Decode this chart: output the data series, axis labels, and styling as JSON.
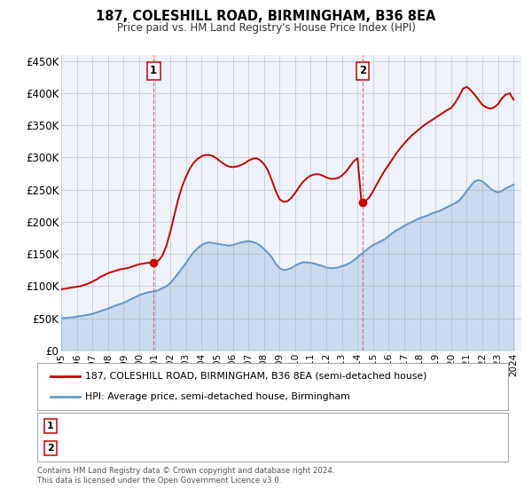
{
  "title": "187, COLESHILL ROAD, BIRMINGHAM, B36 8EA",
  "subtitle": "Price paid vs. HM Land Registry's House Price Index (HPI)",
  "xlim": [
    1995.0,
    2024.5
  ],
  "ylim": [
    0,
    460000
  ],
  "yticks": [
    0,
    50000,
    100000,
    150000,
    200000,
    250000,
    300000,
    350000,
    400000,
    450000
  ],
  "ytick_labels": [
    "£0",
    "£50K",
    "£100K",
    "£150K",
    "£200K",
    "£250K",
    "£300K",
    "£350K",
    "£400K",
    "£450K"
  ],
  "xtick_years": [
    1995,
    1996,
    1997,
    1998,
    1999,
    2000,
    2001,
    2002,
    2003,
    2004,
    2005,
    2006,
    2007,
    2008,
    2009,
    2010,
    2011,
    2012,
    2013,
    2014,
    2015,
    2016,
    2017,
    2018,
    2019,
    2020,
    2021,
    2022,
    2023,
    2024
  ],
  "sale1_x": 2000.92,
  "sale1_y": 136500,
  "sale1_label": "1",
  "sale2_x": 2014.33,
  "sale2_y": 230000,
  "sale2_label": "2",
  "red_line_color": "#cc0000",
  "blue_line_color": "#6699cc",
  "bg_color": "#eef2fb",
  "legend_label_red": "187, COLESHILL ROAD, BIRMINGHAM, B36 8EA (semi-detached house)",
  "legend_label_blue": "HPI: Average price, semi-detached house, Birmingham",
  "footer": "Contains HM Land Registry data © Crown copyright and database right 2024.\nThis data is licensed under the Open Government Licence v3.0.",
  "hpi_data_x": [
    1995.0,
    1995.25,
    1995.5,
    1995.75,
    1996.0,
    1996.25,
    1996.5,
    1996.75,
    1997.0,
    1997.25,
    1997.5,
    1997.75,
    1998.0,
    1998.25,
    1998.5,
    1998.75,
    1999.0,
    1999.25,
    1999.5,
    1999.75,
    2000.0,
    2000.25,
    2000.5,
    2000.75,
    2001.0,
    2001.25,
    2001.5,
    2001.75,
    2002.0,
    2002.25,
    2002.5,
    2002.75,
    2003.0,
    2003.25,
    2003.5,
    2003.75,
    2004.0,
    2004.25,
    2004.5,
    2004.75,
    2005.0,
    2005.25,
    2005.5,
    2005.75,
    2006.0,
    2006.25,
    2006.5,
    2006.75,
    2007.0,
    2007.25,
    2007.5,
    2007.75,
    2008.0,
    2008.25,
    2008.5,
    2008.75,
    2009.0,
    2009.25,
    2009.5,
    2009.75,
    2010.0,
    2010.25,
    2010.5,
    2010.75,
    2011.0,
    2011.25,
    2011.5,
    2011.75,
    2012.0,
    2012.25,
    2012.5,
    2012.75,
    2013.0,
    2013.25,
    2013.5,
    2013.75,
    2014.0,
    2014.25,
    2014.5,
    2014.75,
    2015.0,
    2015.25,
    2015.5,
    2015.75,
    2016.0,
    2016.25,
    2016.5,
    2016.75,
    2017.0,
    2017.25,
    2017.5,
    2017.75,
    2018.0,
    2018.25,
    2018.5,
    2018.75,
    2019.0,
    2019.25,
    2019.5,
    2019.75,
    2020.0,
    2020.25,
    2020.5,
    2020.75,
    2021.0,
    2021.25,
    2021.5,
    2021.75,
    2022.0,
    2022.25,
    2022.5,
    2022.75,
    2023.0,
    2023.25,
    2023.5,
    2023.75,
    2024.0
  ],
  "hpi_data_y": [
    50000,
    50500,
    51000,
    51500,
    52500,
    53500,
    54500,
    55500,
    57000,
    59000,
    61000,
    63000,
    65000,
    67500,
    70000,
    72000,
    74000,
    77000,
    80000,
    83000,
    86000,
    88000,
    90000,
    91000,
    92000,
    94000,
    97000,
    100000,
    105000,
    112000,
    120000,
    128000,
    136000,
    145000,
    153000,
    159000,
    164000,
    167000,
    168000,
    167000,
    166000,
    165000,
    164000,
    163000,
    164000,
    166000,
    168000,
    169000,
    170000,
    169000,
    167000,
    163000,
    158000,
    152000,
    145000,
    135000,
    128000,
    125000,
    126000,
    128000,
    132000,
    135000,
    137000,
    137000,
    136000,
    135000,
    133000,
    131000,
    129000,
    128000,
    128000,
    129000,
    131000,
    133000,
    136000,
    140000,
    145000,
    150000,
    155000,
    160000,
    164000,
    167000,
    170000,
    173000,
    178000,
    183000,
    187000,
    190000,
    194000,
    197000,
    200000,
    203000,
    206000,
    208000,
    210000,
    213000,
    215000,
    217000,
    220000,
    223000,
    226000,
    229000,
    233000,
    240000,
    248000,
    256000,
    263000,
    265000,
    263000,
    258000,
    252000,
    248000,
    246000,
    248000,
    252000,
    255000,
    258000
  ],
  "price_data_x": [
    1995.0,
    1995.25,
    1995.5,
    1995.75,
    1996.0,
    1996.25,
    1996.5,
    1996.75,
    1997.0,
    1997.25,
    1997.5,
    1997.75,
    1998.0,
    1998.25,
    1998.5,
    1998.75,
    1999.0,
    1999.25,
    1999.5,
    1999.75,
    2000.0,
    2000.25,
    2000.5,
    2000.75,
    2001.0,
    2001.25,
    2001.5,
    2001.75,
    2002.0,
    2002.25,
    2002.5,
    2002.75,
    2003.0,
    2003.25,
    2003.5,
    2003.75,
    2004.0,
    2004.25,
    2004.5,
    2004.75,
    2005.0,
    2005.25,
    2005.5,
    2005.75,
    2006.0,
    2006.25,
    2006.5,
    2006.75,
    2007.0,
    2007.25,
    2007.5,
    2007.75,
    2008.0,
    2008.25,
    2008.5,
    2008.75,
    2009.0,
    2009.25,
    2009.5,
    2009.75,
    2010.0,
    2010.25,
    2010.5,
    2010.75,
    2011.0,
    2011.25,
    2011.5,
    2011.75,
    2012.0,
    2012.25,
    2012.5,
    2012.75,
    2013.0,
    2013.25,
    2013.5,
    2013.75,
    2014.0,
    2014.25,
    2014.5,
    2014.75,
    2015.0,
    2015.25,
    2015.5,
    2015.75,
    2016.0,
    2016.25,
    2016.5,
    2016.75,
    2017.0,
    2017.25,
    2017.5,
    2017.75,
    2018.0,
    2018.25,
    2018.5,
    2018.75,
    2019.0,
    2019.25,
    2019.5,
    2019.75,
    2020.0,
    2020.25,
    2020.5,
    2020.75,
    2021.0,
    2021.25,
    2021.5,
    2021.75,
    2022.0,
    2022.25,
    2022.5,
    2022.75,
    2023.0,
    2023.25,
    2023.5,
    2023.75,
    2024.0
  ],
  "price_data_y": [
    95000,
    96000,
    97000,
    98000,
    99000,
    100000,
    102000,
    104000,
    107000,
    110000,
    114000,
    117000,
    120000,
    122000,
    124000,
    126000,
    127000,
    128000,
    130000,
    132000,
    134000,
    135000,
    136000,
    136500,
    137000,
    140000,
    148000,
    163000,
    185000,
    210000,
    235000,
    255000,
    270000,
    283000,
    292000,
    298000,
    302000,
    304000,
    304000,
    302000,
    298000,
    293000,
    289000,
    286000,
    285000,
    286000,
    288000,
    291000,
    295000,
    298000,
    299000,
    296000,
    290000,
    280000,
    265000,
    248000,
    235000,
    231000,
    232000,
    237000,
    245000,
    254000,
    262000,
    268000,
    272000,
    274000,
    274000,
    272000,
    269000,
    267000,
    267000,
    268000,
    272000,
    278000,
    286000,
    294000,
    299000,
    230000,
    232000,
    238000,
    248000,
    259000,
    270000,
    280000,
    289000,
    298000,
    307000,
    315000,
    322000,
    329000,
    335000,
    340000,
    345000,
    350000,
    354000,
    358000,
    362000,
    366000,
    370000,
    374000,
    377000,
    385000,
    395000,
    407000,
    410000,
    405000,
    398000,
    390000,
    382000,
    378000,
    376000,
    378000,
    383000,
    392000,
    398000,
    400000,
    390000
  ]
}
